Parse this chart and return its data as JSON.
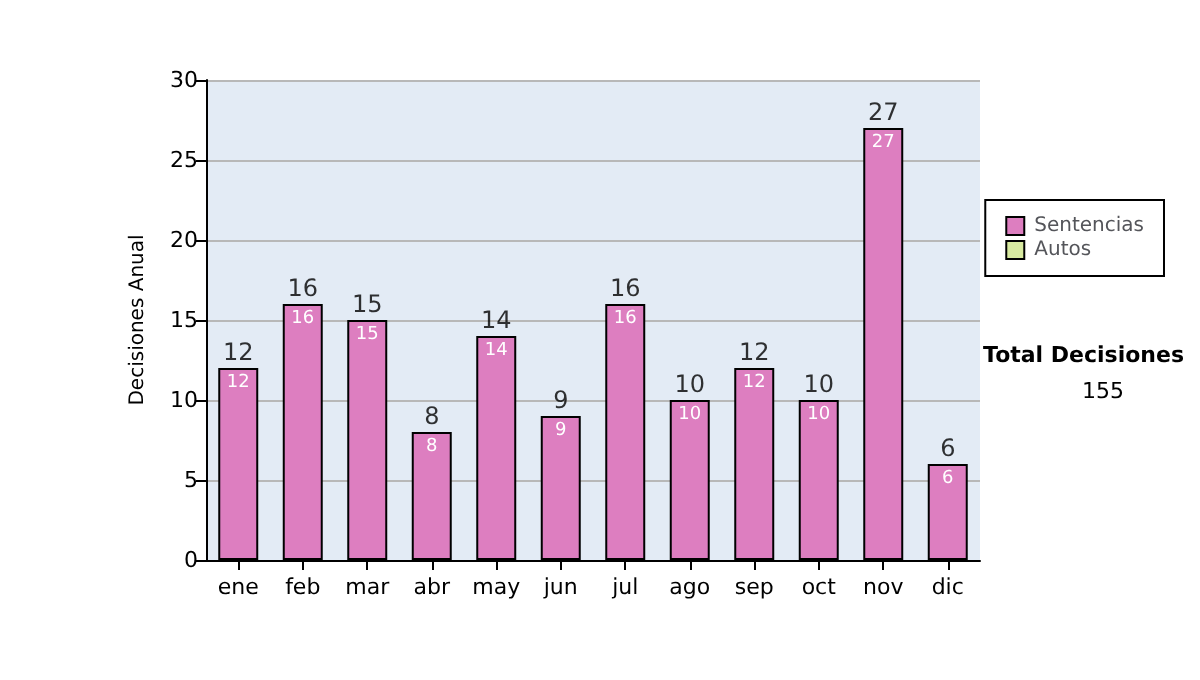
{
  "chart_data": {
    "type": "bar",
    "ylabel": "Decisiones Anual",
    "categories": [
      "ene",
      "feb",
      "mar",
      "abr",
      "may",
      "jun",
      "jul",
      "ago",
      "sep",
      "oct",
      "nov",
      "dic"
    ],
    "series": [
      {
        "name": "Sentencias",
        "color": "#dd7ec0",
        "values": [
          12,
          16,
          15,
          8,
          14,
          9,
          16,
          10,
          12,
          10,
          27,
          6
        ],
        "value_labels": [
          "12",
          "16",
          "15",
          "8",
          "14",
          "9",
          "16",
          "10",
          "12",
          "10",
          "27",
          "6"
        ]
      },
      {
        "name": "Autos",
        "color": "#d8eaa0",
        "values": [
          0,
          0,
          0,
          0,
          0,
          0,
          0,
          0,
          0,
          0,
          0,
          0
        ]
      }
    ],
    "stacked": true,
    "totals": [
      "12",
      "16",
      "15",
      "8",
      "14",
      "9",
      "16",
      "10",
      "12",
      "10",
      "27",
      "6"
    ],
    "ylim": [
      0,
      30
    ],
    "yticks": [
      0,
      5,
      10,
      15,
      20,
      25,
      30
    ],
    "grid": "y",
    "legend": "right",
    "annotations": [
      "Total Decisiones",
      "155"
    ]
  }
}
